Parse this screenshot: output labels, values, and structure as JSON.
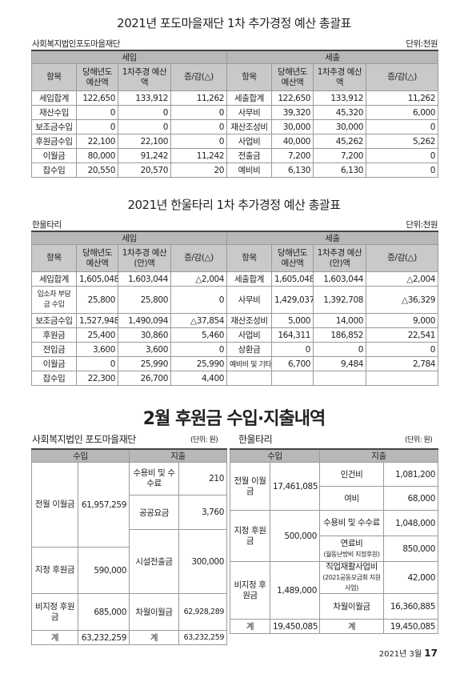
{
  "t1": {
    "title": "2021년 포도마을재단 1차 추가경정 예산 총괄표",
    "org": "사회복지법인포도마을재단",
    "unit": "단위:천원",
    "income_label": "세입",
    "expense_label": "세출",
    "headers": [
      "항목",
      "당해년도 예산액",
      "1차추경 예산액",
      "증/감(△)",
      "항목",
      "당해년도 예산액",
      "1차추경 예산액",
      "증/감(△)"
    ],
    "rows": [
      [
        "세입합계",
        "122,650",
        "133,912",
        "11,262",
        "세출합계",
        "122,650",
        "133,912",
        "11,262"
      ],
      [
        "재산수입",
        "0",
        "0",
        "0",
        "사무비",
        "39,320",
        "45,320",
        "6,000"
      ],
      [
        "보조금수입",
        "0",
        "0",
        "0",
        "재산조성비",
        "30,000",
        "30,000",
        "0"
      ],
      [
        "후원금수입",
        "22,100",
        "22,100",
        "0",
        "사업비",
        "40,000",
        "45,262",
        "5,262"
      ],
      [
        "이월금",
        "80,000",
        "91,242",
        "11,242",
        "전출금",
        "7,200",
        "7,200",
        "0"
      ],
      [
        "잡수입",
        "20,550",
        "20,570",
        "20",
        "예비비",
        "6,130",
        "6,130",
        "0"
      ]
    ]
  },
  "t2": {
    "title": "2021년 한울타리 1차 추가경정 예산 총괄표",
    "org": "한울타리",
    "unit": "단위:천원",
    "income_label": "세입",
    "expense_label": "세출",
    "headers": [
      "항목",
      "당해년도 예산액",
      "1차추경 예산(안)액",
      "증/감(△)",
      "항목",
      "당해년도 예산액",
      "1차추경 예산(안)액",
      "증/감(△)"
    ],
    "rows": [
      [
        "세입합계",
        "1,605,048",
        "1,603,044",
        "△2,004",
        "세출합계",
        "1,605,048",
        "1,603,044",
        "△2,004"
      ],
      [
        "입소자 부담금 수입",
        "25,800",
        "25,800",
        "0",
        "사무비",
        "1,429,037",
        "1,392,708",
        "△36,329"
      ],
      [
        "보조금수입",
        "1,527,948",
        "1,490,094",
        "△37,854",
        "재산조성비",
        "5,000",
        "14,000",
        "9,000"
      ],
      [
        "후원금",
        "25,400",
        "30,860",
        "5,460",
        "사업비",
        "164,311",
        "186,852",
        "22,541"
      ],
      [
        "전입금",
        "3,600",
        "3,600",
        "0",
        "상환금",
        "0",
        "0",
        "0"
      ],
      [
        "이월금",
        "0",
        "25,990",
        "25,990",
        "예비비 및 기타",
        "6,700",
        "9,484",
        "2,784"
      ],
      [
        "잡수입",
        "22,300",
        "26,700",
        "4,400",
        "",
        "",
        "",
        ""
      ]
    ]
  },
  "sec": {
    "title": "2월 후원금 수입·지출내역",
    "left_org": "사회복지법인 포도마을재단",
    "left_unit": "(단위: 원)",
    "right_org": "한울타리",
    "right_unit": "(단위: 원)",
    "income": "수입",
    "expense": "지출"
  },
  "left": {
    "inc": [
      {
        "label": "전월 이월금",
        "value": "61,957,259"
      },
      {
        "label": "지정 후원금",
        "value": "590,000"
      },
      {
        "label": "비지정 후원금",
        "value": "685,000"
      }
    ],
    "exp": [
      {
        "label": "수용비 및 수수료",
        "value": "210"
      },
      {
        "label": "공공요금",
        "value": "3,760"
      },
      {
        "label": "시설전출금",
        "value": "300,000"
      },
      {
        "label": "차월이월금",
        "value": "62,928,289"
      }
    ],
    "total_label": "계",
    "total_inc": "63,232,259",
    "total_exp_label": "계",
    "total_exp": "63,232,259"
  },
  "right": {
    "inc": [
      {
        "label": "전월 이월금",
        "value": "17,461,085"
      },
      {
        "label": "지정 후원금",
        "value": "500,000"
      },
      {
        "label": "비지정 후원금",
        "value": "1,489,000"
      }
    ],
    "exp": [
      {
        "label": "인건비",
        "value": "1,081,200"
      },
      {
        "label": "여비",
        "value": "68,000"
      },
      {
        "label": "수용비 및 수수료",
        "value": "1,048,000"
      },
      {
        "label": "연료비",
        "note": "(월동난방비 지정후원)",
        "value": "850,000"
      },
      {
        "label": "직업재활사업비",
        "note": "(2021공동모금회 지원사업)",
        "value": "42,000"
      },
      {
        "label": "차월이월금",
        "value": "16,360,885"
      }
    ],
    "total_label": "계",
    "total_inc": "19,450,085",
    "total_exp_label": "계",
    "total_exp": "19,450,085"
  },
  "footer": {
    "date": "2021년 3월",
    "page": "17"
  }
}
